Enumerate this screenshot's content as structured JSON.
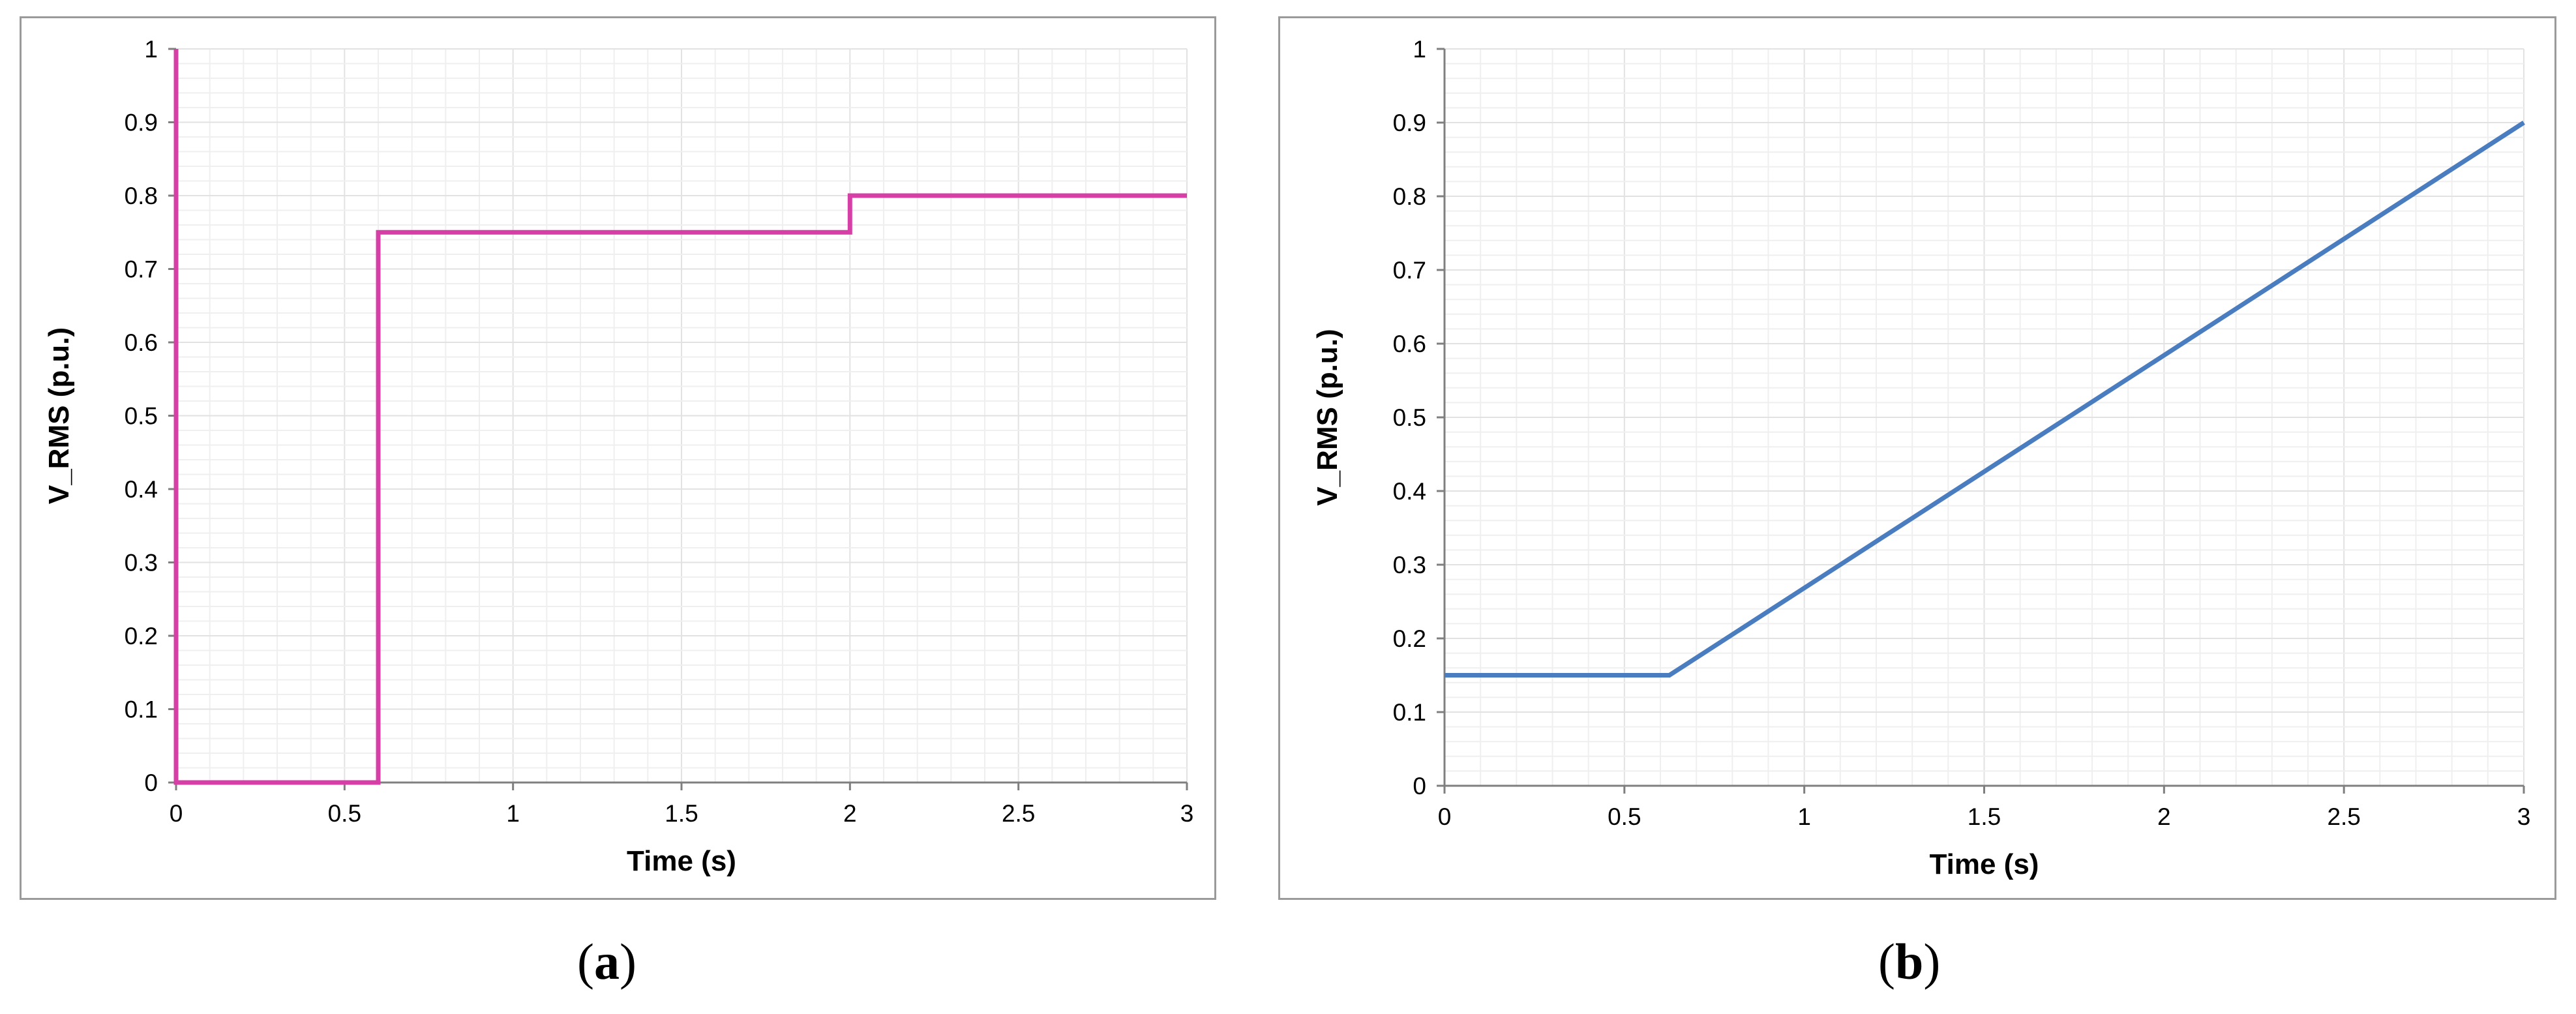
{
  "chart_data": [
    {
      "type": "line",
      "panel_label": "a",
      "xlabel": "Time (s)",
      "ylabel": "V_RMS (p.u.)",
      "xlim": [
        0,
        3
      ],
      "ylim": [
        0,
        1
      ],
      "x_ticks": [
        "0",
        "0.5",
        "1",
        "1.5",
        "2",
        "2.5",
        "3"
      ],
      "y_ticks": [
        "0",
        "0.1",
        "0.2",
        "0.3",
        "0.4",
        "0.5",
        "0.6",
        "0.7",
        "0.8",
        "0.9",
        "1"
      ],
      "grid": true,
      "line_color": "#d63fa6",
      "series": [
        {
          "x": [
            0,
            0,
            0.6,
            0.6,
            2,
            2,
            3
          ],
          "y": [
            1,
            0,
            0,
            0.75,
            0.75,
            0.8,
            0.8
          ]
        }
      ]
    },
    {
      "type": "line",
      "panel_label": "b",
      "xlabel": "Time (s)",
      "ylabel": "V_RMS (p.u.)",
      "xlim": [
        0,
        3
      ],
      "ylim": [
        0,
        1
      ],
      "x_ticks": [
        "0",
        "0.5",
        "1",
        "1.5",
        "2",
        "2.5",
        "3"
      ],
      "y_ticks": [
        "0",
        "0.1",
        "0.2",
        "0.3",
        "0.4",
        "0.5",
        "0.6",
        "0.7",
        "0.8",
        "0.9",
        "1"
      ],
      "grid": true,
      "line_color": "#4a7cc0",
      "series": [
        {
          "x": [
            0,
            0.625,
            3
          ],
          "y": [
            0.15,
            0.15,
            0.9
          ]
        }
      ]
    }
  ]
}
